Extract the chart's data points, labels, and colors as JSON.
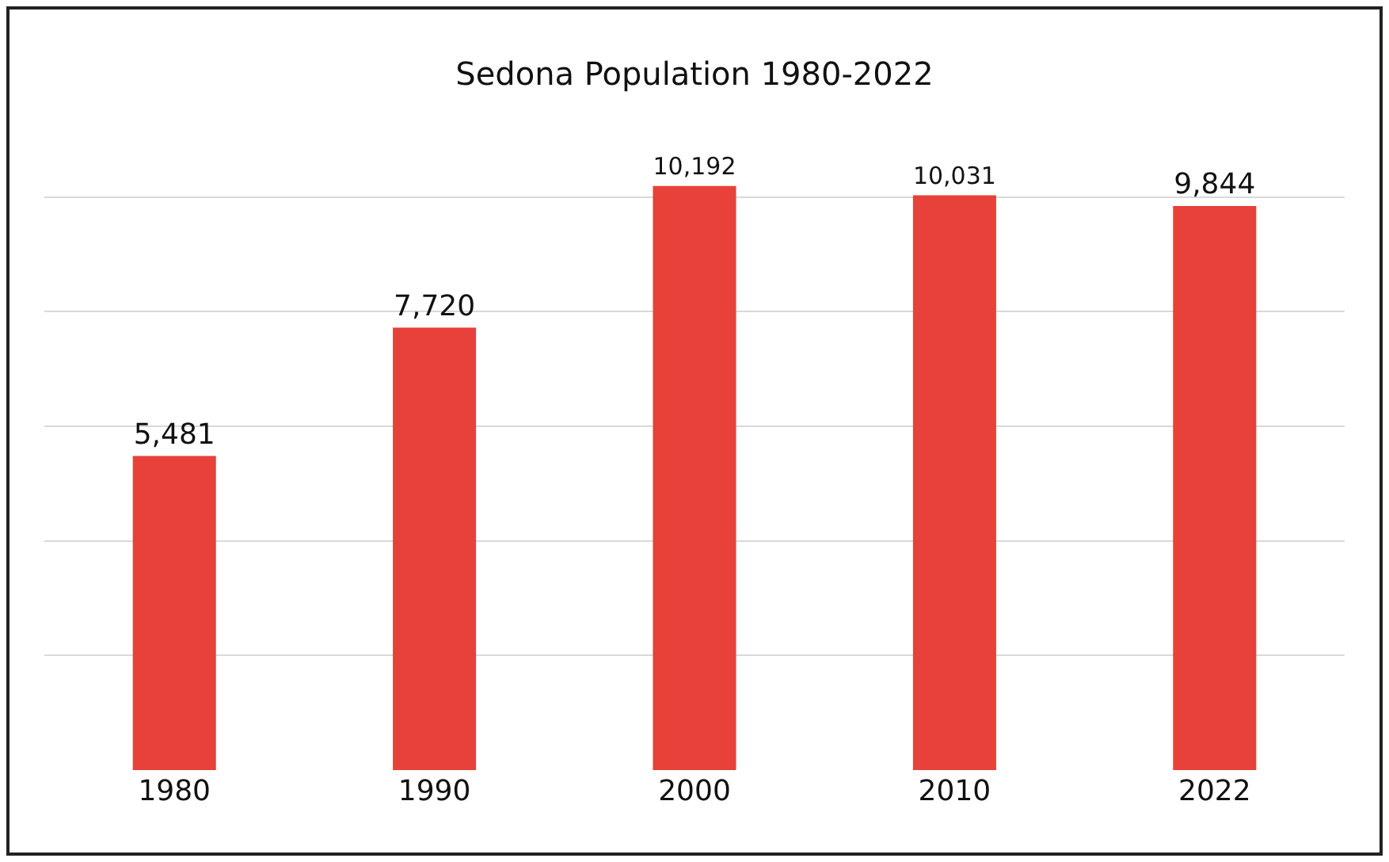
{
  "chart_data": {
    "type": "bar",
    "title": "Sedona Population 1980-2022",
    "categories": [
      "1980",
      "1990",
      "2000",
      "2010",
      "2022"
    ],
    "values": [
      5481,
      7720,
      10192,
      10031,
      9844
    ],
    "value_labels": [
      "5,481",
      "7,720",
      "10,192",
      "10,031",
      "9,844"
    ],
    "color": "#e8413a",
    "tick_labels": "x",
    "grid": "y"
  }
}
